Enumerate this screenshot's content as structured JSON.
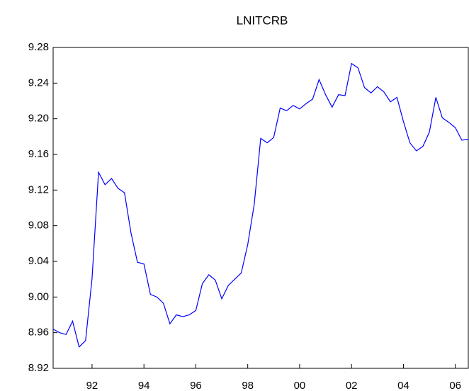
{
  "chart_data": {
    "type": "line",
    "title": "LNITCRB",
    "x": [
      1991,
      1991.25,
      1991.5,
      1991.75,
      1992,
      1992.25,
      1992.5,
      1992.75,
      1993,
      1993.25,
      1993.5,
      1993.75,
      1994,
      1994.25,
      1994.5,
      1994.75,
      1995,
      1995.25,
      1995.5,
      1995.75,
      1996,
      1996.25,
      1996.5,
      1996.75,
      1997,
      1997.25,
      1997.5,
      1997.75,
      1998,
      1998.25,
      1998.5,
      1998.75,
      1999,
      1999.25,
      1999.5,
      1999.75,
      2000,
      2000.25,
      2000.5,
      2000.75,
      2001,
      2001.25,
      2001.5,
      2001.75,
      2002,
      2002.25,
      2002.5,
      2002.75,
      2003,
      2003.25,
      2003.5,
      2003.75,
      2004,
      2004.25,
      2004.5,
      2004.75,
      2005,
      2005.25,
      2005.5,
      2005.75,
      2006,
      2006.25,
      2006.5,
      2006.75,
      2007
    ],
    "series": [
      {
        "name": "LNITCRB",
        "color": "#0000ff",
        "values": [
          8.964,
          8.96,
          8.958,
          8.973,
          8.944,
          8.951,
          9.021,
          9.14,
          9.126,
          9.133,
          9.122,
          9.117,
          9.072,
          9.039,
          9.037,
          9.003,
          9.0,
          8.993,
          8.97,
          8.98,
          8.978,
          8.98,
          8.985,
          9.015,
          9.025,
          9.019,
          8.998,
          9.013,
          9.02,
          9.027,
          9.059,
          9.104,
          9.178,
          9.173,
          9.179,
          9.212,
          9.209,
          9.215,
          9.211,
          9.217,
          9.222,
          9.244,
          9.227,
          9.213,
          9.227,
          9.226,
          9.262,
          9.257,
          9.235,
          9.229,
          9.236,
          9.23,
          9.219,
          9.224,
          9.197,
          9.173,
          9.164,
          9.169,
          9.185,
          9.224,
          9.201,
          9.196,
          9.19,
          9.176,
          9.177
        ]
      }
    ],
    "xlim": [
      1991,
      2007
    ],
    "xticks": [
      {
        "value": 1992.5,
        "label": "92"
      },
      {
        "value": 1994.5,
        "label": "94"
      },
      {
        "value": 1996.5,
        "label": "96"
      },
      {
        "value": 1998.5,
        "label": "98"
      },
      {
        "value": 2000.5,
        "label": "00"
      },
      {
        "value": 2002.5,
        "label": "02"
      },
      {
        "value": 2004.5,
        "label": "04"
      },
      {
        "value": 2006.5,
        "label": "06"
      }
    ],
    "ylim": [
      8.92,
      9.28
    ],
    "yticks": [
      8.92,
      8.96,
      {
        "value": 9.0,
        "label": "9.00"
      },
      9.04,
      9.08,
      9.12,
      9.16,
      {
        "value": 9.2,
        "label": "9.20"
      },
      9.24,
      9.28
    ],
    "grid": false
  }
}
